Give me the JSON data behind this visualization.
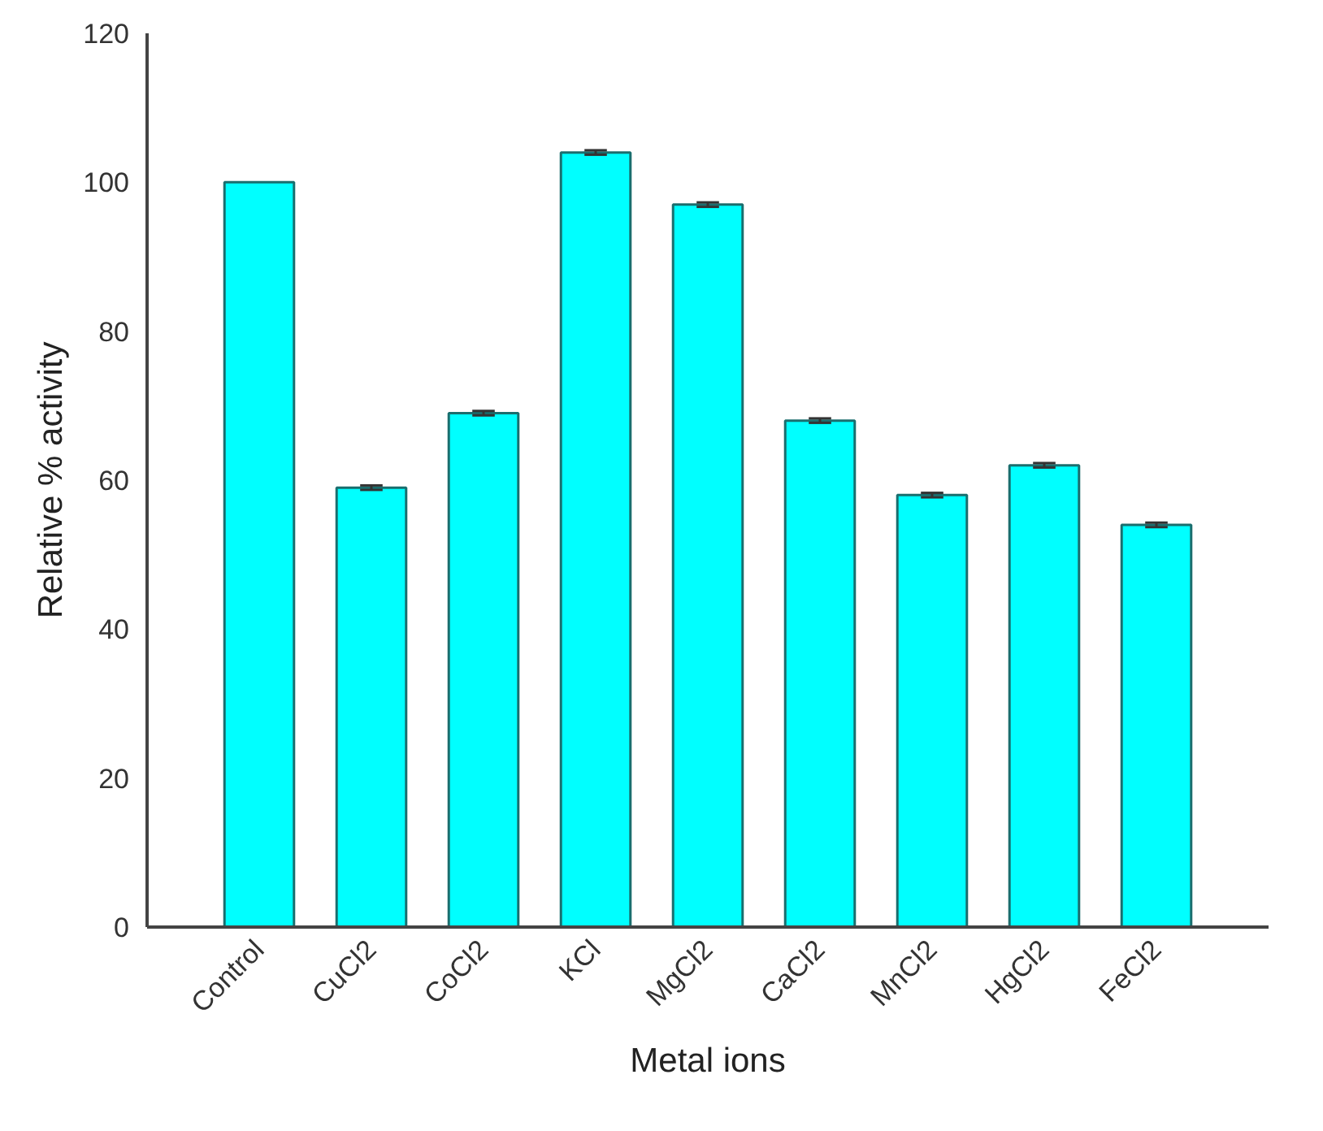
{
  "chart_data": {
    "type": "bar",
    "xlabel": "Metal ions",
    "ylabel": "Relative % activity",
    "categories": [
      "Control",
      "CuCl2",
      "CoCl2",
      "KCl",
      "MgCl2",
      "CaCl2",
      "MnCl2",
      "HgCl2",
      "FeCl2"
    ],
    "values": [
      100,
      59,
      69,
      104,
      97,
      68,
      58,
      62,
      54
    ],
    "errors": [
      null,
      0.3,
      0.3,
      0.3,
      0.3,
      0.3,
      0.3,
      0.3,
      0.3
    ],
    "color": "#00ffff",
    "ylim": [
      0,
      120
    ],
    "yticks": [
      0,
      20,
      40,
      60,
      80,
      100,
      120
    ],
    "grid": false
  }
}
